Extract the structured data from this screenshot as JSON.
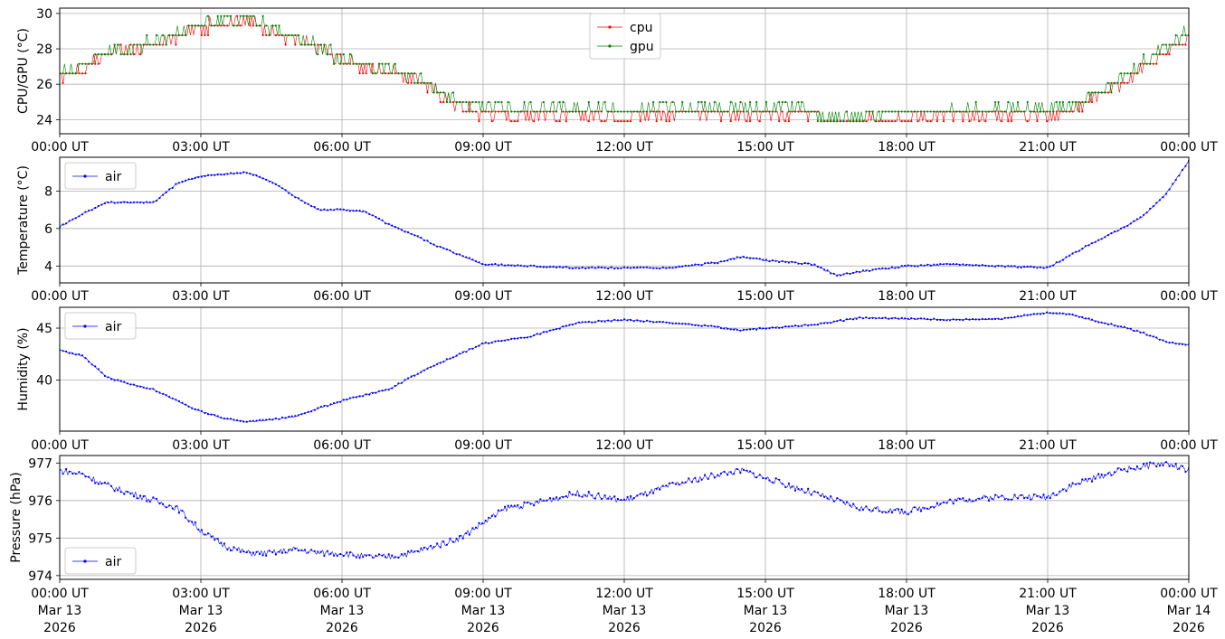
{
  "chart_data": [
    {
      "type": "line",
      "ylabel": "CPU/GPU (°C)",
      "ylim": [
        23.2,
        30.3
      ],
      "yticks": [
        24,
        26,
        28,
        30
      ],
      "xlim_hours": [
        0,
        24
      ],
      "xtick_labels": [
        "00:00 UT",
        "03:00 UT",
        "06:00 UT",
        "09:00 UT",
        "12:00 UT",
        "15:00 UT",
        "18:00 UT",
        "21:00 UT",
        "00:00 UT"
      ],
      "grid": true,
      "legend": "top-center",
      "series": [
        {
          "name": "cpu",
          "color": "#ff0000",
          "x_hours": [
            0,
            0.5,
            1,
            1.5,
            2,
            2.5,
            3,
            3.5,
            4,
            4.5,
            5,
            5.5,
            6,
            6.5,
            7,
            7.5,
            8,
            8.5,
            9,
            10,
            11,
            12,
            13,
            14,
            15,
            16,
            16.5,
            17,
            18,
            19,
            20,
            21,
            21.5,
            22,
            22.5,
            23,
            23.5,
            24
          ],
          "values": [
            26.3,
            26.7,
            27.6,
            27.9,
            28.0,
            28.6,
            29.0,
            29.4,
            29.5,
            28.8,
            28.4,
            27.9,
            27.2,
            26.8,
            26.6,
            26.2,
            25.4,
            24.5,
            24.2,
            24.1,
            24.1,
            24.1,
            24.2,
            24.2,
            24.2,
            24.2,
            23.7,
            23.8,
            24.0,
            24.1,
            24.2,
            24.2,
            24.3,
            25.1,
            25.8,
            26.7,
            27.5,
            28.5
          ]
        },
        {
          "name": "gpu",
          "color": "#008000",
          "x_hours": [
            0,
            0.5,
            1,
            1.5,
            2,
            2.5,
            3,
            3.5,
            4,
            4.5,
            5,
            5.5,
            6,
            6.5,
            7,
            7.5,
            8,
            8.5,
            9,
            10,
            11,
            12,
            13,
            14,
            15,
            16,
            16.5,
            17,
            18,
            19,
            20,
            21,
            21.5,
            22,
            22.5,
            23,
            23.5,
            24
          ],
          "values": [
            26.5,
            27.0,
            27.8,
            27.9,
            28.2,
            28.8,
            29.2,
            29.5,
            29.6,
            29.0,
            28.5,
            28.0,
            27.2,
            26.9,
            26.7,
            26.3,
            25.6,
            24.8,
            24.5,
            24.4,
            24.4,
            24.4,
            24.5,
            24.5,
            24.5,
            24.4,
            23.9,
            24.0,
            24.3,
            24.4,
            24.4,
            24.4,
            24.6,
            25.3,
            26.0,
            27.0,
            27.9,
            28.8
          ]
        }
      ]
    },
    {
      "type": "line",
      "ylabel": "Temperature (°C)",
      "ylim": [
        3.1,
        9.8
      ],
      "yticks": [
        4,
        6,
        8
      ],
      "xlim_hours": [
        0,
        24
      ],
      "xtick_labels": [
        "00:00 UT",
        "03:00 UT",
        "06:00 UT",
        "09:00 UT",
        "12:00 UT",
        "15:00 UT",
        "18:00 UT",
        "21:00 UT",
        "00:00 UT"
      ],
      "grid": true,
      "legend": "top-left",
      "series": [
        {
          "name": "air",
          "color": "#0000ff",
          "x_hours": [
            0,
            0.5,
            1,
            1.5,
            2,
            2.5,
            3,
            3.5,
            4,
            4.5,
            5,
            5.5,
            6,
            6.5,
            7,
            7.5,
            8,
            8.5,
            9,
            10,
            11,
            12,
            13,
            14,
            14.5,
            15,
            16,
            16.5,
            17,
            18,
            19,
            20,
            21,
            21.5,
            22,
            22.5,
            23,
            23.5,
            24
          ],
          "values": [
            6.1,
            6.8,
            7.4,
            7.4,
            7.4,
            8.4,
            8.8,
            8.9,
            9.0,
            8.5,
            7.7,
            7.0,
            7.0,
            6.9,
            6.2,
            5.7,
            5.1,
            4.6,
            4.1,
            4.0,
            3.9,
            3.9,
            3.9,
            4.2,
            4.5,
            4.3,
            4.1,
            3.5,
            3.7,
            4.0,
            4.1,
            4.0,
            3.9,
            4.6,
            5.3,
            5.9,
            6.6,
            7.8,
            9.6
          ]
        }
      ]
    },
    {
      "type": "line",
      "ylabel": "Humidity (%)",
      "ylim": [
        35.1,
        47.0
      ],
      "yticks": [
        40,
        45
      ],
      "xlim_hours": [
        0,
        24
      ],
      "xtick_labels": [
        "00:00 UT",
        "03:00 UT",
        "06:00 UT",
        "09:00 UT",
        "12:00 UT",
        "15:00 UT",
        "18:00 UT",
        "21:00 UT",
        "00:00 UT"
      ],
      "grid": true,
      "legend": "top-left",
      "series": [
        {
          "name": "air",
          "color": "#0000ff",
          "x_hours": [
            0,
            0.5,
            1,
            1.5,
            2,
            2.5,
            3,
            3.5,
            4,
            4.5,
            5,
            5.5,
            6,
            6.5,
            7,
            7.5,
            8,
            8.5,
            9,
            9.5,
            10,
            11,
            12,
            13,
            14,
            14.5,
            15,
            16,
            17,
            18,
            19,
            20,
            21,
            21.5,
            22,
            22.5,
            23,
            23.5,
            24
          ],
          "values": [
            42.9,
            42.3,
            40.3,
            39.6,
            39.1,
            38.0,
            37.0,
            36.3,
            36.0,
            36.2,
            36.5,
            37.3,
            38.0,
            38.6,
            39.1,
            40.4,
            41.5,
            42.5,
            43.5,
            43.9,
            44.2,
            45.5,
            45.8,
            45.5,
            45.1,
            44.8,
            45.0,
            45.3,
            46.0,
            45.9,
            45.8,
            45.9,
            46.5,
            46.3,
            45.7,
            45.2,
            44.6,
            43.7,
            43.4
          ]
        }
      ]
    },
    {
      "type": "line",
      "ylabel": "Pressure (hPa)",
      "ylim": [
        973.9,
        977.2
      ],
      "yticks": [
        974,
        975,
        976,
        977
      ],
      "xlim_hours": [
        0,
        24
      ],
      "xtick_labels": [
        "00:00 UT\nMar 13\n2026",
        "03:00 UT\nMar 13\n2026",
        "06:00 UT\nMar 13\n2026",
        "09:00 UT\nMar 13\n2026",
        "12:00 UT\nMar 13\n2026",
        "15:00 UT\nMar 13\n2026",
        "18:00 UT\nMar 13\n2026",
        "21:00 UT\nMar 13\n2026",
        "00:00 UT\nMar 14\n2026"
      ],
      "grid": true,
      "legend": "bottom-left",
      "series": [
        {
          "name": "air",
          "color": "#0000ff",
          "x_hours": [
            0,
            0.5,
            1,
            1.5,
            2,
            2.5,
            3,
            3.5,
            4,
            4.5,
            5,
            5.5,
            6,
            6.5,
            7,
            7.5,
            8,
            8.5,
            9,
            9.5,
            10,
            11,
            12,
            13,
            14,
            14.5,
            15,
            16,
            17,
            18,
            19,
            20,
            21,
            21.5,
            22,
            22.5,
            23,
            23.5,
            24
          ],
          "values": [
            976.8,
            976.7,
            976.4,
            976.2,
            976.0,
            975.8,
            975.2,
            974.8,
            974.6,
            974.6,
            974.7,
            974.6,
            974.6,
            974.5,
            974.5,
            974.6,
            974.8,
            975.0,
            975.4,
            975.8,
            975.9,
            976.2,
            976.0,
            976.4,
            976.7,
            976.8,
            976.6,
            976.2,
            975.8,
            975.7,
            976.0,
            976.1,
            976.1,
            976.4,
            976.6,
            976.8,
            976.9,
            977.0,
            976.8
          ]
        }
      ]
    }
  ]
}
